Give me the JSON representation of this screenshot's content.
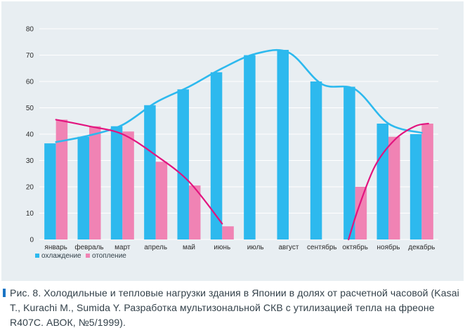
{
  "chart_data": {
    "type": "bar",
    "categories": [
      "январь",
      "февраль",
      "март",
      "апрель",
      "май",
      "июнь",
      "июль",
      "август",
      "сентябрь",
      "октябрь",
      "ноябрь",
      "декабрь"
    ],
    "series": [
      {
        "name": "охлаждение",
        "color": "#2db9ee",
        "values": [
          36.5,
          39,
          43,
          51,
          57,
          63.5,
          70,
          72,
          60,
          58,
          44,
          40
        ]
      },
      {
        "name": "отопление",
        "color": "#f083b4",
        "values": [
          45.5,
          43,
          41,
          29.5,
          20.5,
          5,
          0,
          0,
          0,
          20,
          39,
          44
        ]
      }
    ],
    "trend_lines": [
      {
        "series": "охлаждение",
        "color": "#2db9ee",
        "points": [
          [
            0,
            37
          ],
          [
            1,
            39.5
          ],
          [
            2,
            43.5
          ],
          [
            3,
            52
          ],
          [
            4,
            58
          ],
          [
            5,
            65
          ],
          [
            6,
            70.5
          ],
          [
            7,
            71
          ],
          [
            8,
            59
          ],
          [
            9,
            57
          ],
          [
            10,
            44
          ],
          [
            11,
            40.5
          ]
        ]
      },
      {
        "series": "отопление",
        "color": "#e2147f",
        "segments": [
          [
            [
              0,
              45.5
            ],
            [
              1,
              43
            ],
            [
              2,
              40
            ],
            [
              3,
              32
            ],
            [
              4,
              22
            ],
            [
              5,
              6
            ]
          ],
          [
            [
              8.8,
              0
            ],
            [
              9.1,
              12
            ],
            [
              9.6,
              28
            ],
            [
              10.2,
              38
            ],
            [
              10.8,
              43
            ],
            [
              11.2,
              44
            ]
          ]
        ]
      }
    ],
    "ylim": [
      0,
      80
    ],
    "yticks": [
      0,
      10,
      20,
      30,
      40,
      50,
      60,
      70,
      80
    ],
    "grid": true,
    "legend_position": "bottom-left"
  },
  "caption": "Рис. 8. Холодильные и тепловые нагрузки здания в Японии в долях от расчетной часовой (Kasai T., Kurachi M., Sumida Y. Разработка мультизональной СКВ с утилизацией тепла на фреоне R407C. АВОК, №5/1999)."
}
